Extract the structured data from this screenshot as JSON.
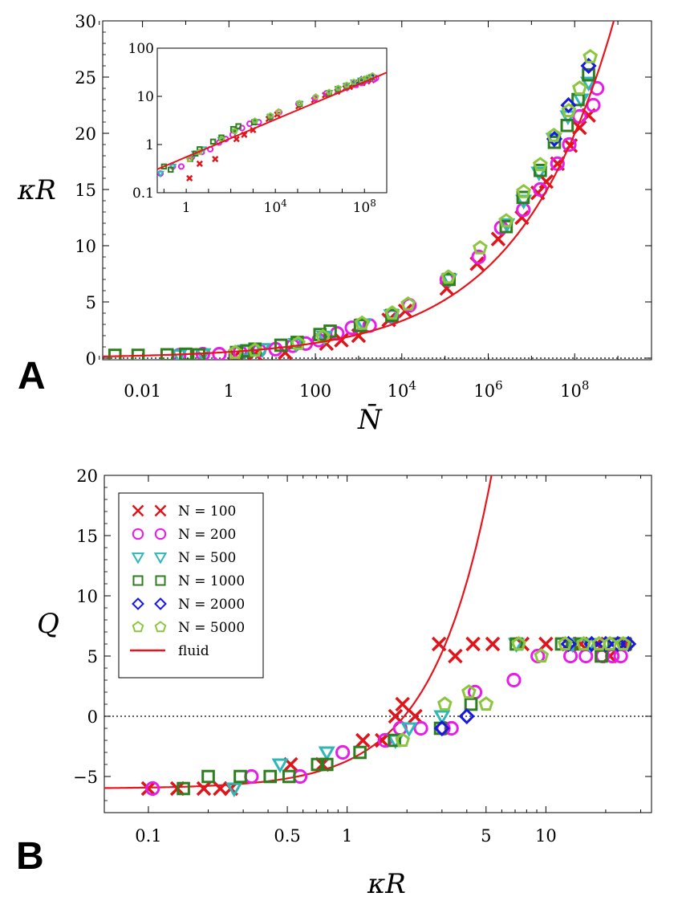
{
  "chart_data": [
    {
      "panel": "A",
      "type": "scatter",
      "xlabel": "N̄",
      "ylabel": "κR",
      "xscale": "log",
      "xlim": [
        0.0012,
        6000000000.0
      ],
      "ylim": [
        0,
        30
      ],
      "x_ticks": [
        {
          "value": 0.01,
          "label": "0.01"
        },
        {
          "value": 1,
          "label": "1"
        },
        {
          "value": 100,
          "label": "100"
        },
        {
          "value": 10000,
          "label": "10",
          "sup": "4"
        },
        {
          "value": 1000000,
          "label": "10",
          "sup": "6"
        },
        {
          "value": 100000000,
          "label": "10",
          "sup": "8"
        }
      ],
      "y_ticks": [
        "0",
        "5",
        "10",
        "15",
        "20",
        "25",
        "30"
      ],
      "grid": false,
      "colors": {
        "N100": "#e0151b",
        "N200": "#e81ce8",
        "N500": "#2eb7b5",
        "N1000": "#2e7d1e",
        "N2000": "#1818e0",
        "N5000": "#8cc63f",
        "fluid": "#e8141c"
      },
      "series": [
        {
          "key": "N100",
          "marker": "x",
          "x": [
            0.25,
            1.4,
            4,
            20,
            180,
            400,
            1000,
            5000,
            12000,
            110000,
            550000,
            1700000,
            6000000,
            14000000,
            22000000,
            40000000,
            80000000,
            130000000,
            210000000
          ],
          "y": [
            0.1,
            0.2,
            0.4,
            0.5,
            1.3,
            1.6,
            2.0,
            3.4,
            4.2,
            6.2,
            8.4,
            10.6,
            12.5,
            14.7,
            15.7,
            17.3,
            18.9,
            20.5,
            21.6
          ]
        },
        {
          "key": "N200",
          "marker": "circle",
          "x": [
            0.07,
            0.25,
            0.6,
            1.8,
            5,
            12,
            30,
            60,
            120,
            320,
            700,
            1800,
            6000,
            15000,
            110000,
            600000,
            2000000,
            6500000,
            16000000,
            40000000,
            75000000,
            130000000,
            270000000,
            330000000
          ],
          "y": [
            0.25,
            0.35,
            0.35,
            0.55,
            0.7,
            0.8,
            1.1,
            1.3,
            1.6,
            2.2,
            2.7,
            2.9,
            3.7,
            4.7,
            7.0,
            9.0,
            11.6,
            13.2,
            15.0,
            17.3,
            19.0,
            21.5,
            22.5,
            24.0
          ]
        },
        {
          "key": "N500",
          "marker": "triangle",
          "x": [
            0.07,
            0.25,
            2.4,
            6,
            36,
            160,
            1300,
            5800,
            125000,
            2700000,
            6600000,
            15000000,
            33000000,
            70000000,
            140000000,
            210000000
          ],
          "y": [
            0.25,
            0.35,
            0.65,
            0.8,
            1.25,
            1.9,
            3.0,
            3.8,
            7.0,
            11.9,
            14.0,
            16.5,
            19.5,
            21.5,
            23.0,
            24.5
          ]
        },
        {
          "key": "N1000",
          "marker": "square",
          "x": [
            0.0023,
            0.0079,
            0.037,
            0.1,
            0.2,
            1.5,
            2.6,
            4,
            16,
            38,
            128,
            220,
            1100,
            5900,
            124000,
            2600000,
            6400000,
            16000000,
            34000000,
            67000000,
            120000000,
            210000000
          ],
          "y": [
            0.25,
            0.25,
            0.3,
            0.35,
            0.3,
            0.5,
            0.65,
            0.8,
            1.15,
            1.4,
            2.1,
            2.4,
            2.9,
            3.8,
            7.0,
            11.7,
            14.3,
            16.7,
            19.2,
            20.7,
            23.0,
            25.2
          ]
        },
        {
          "key": "N2000",
          "marker": "diamond",
          "x": [
            34000000,
            72000000,
            210000000
          ],
          "y": [
            19.5,
            22.5,
            26.0
          ]
        },
        {
          "key": "N5000",
          "marker": "pentagon",
          "x": [
            1.4,
            4,
            40,
            150,
            1200,
            6000,
            14000,
            120000,
            650000,
            2600000,
            6600000,
            16000000,
            33000000,
            73000000,
            130000000,
            230000000
          ],
          "y": [
            0.5,
            0.7,
            1.3,
            1.9,
            3.1,
            4.0,
            4.8,
            7.2,
            9.8,
            12.2,
            14.8,
            17.2,
            19.8,
            22.0,
            24.0,
            26.8
          ]
        }
      ],
      "fluid_curve": {
        "name": "fluid",
        "color": "#e8141c"
      },
      "inset": {
        "xscale": "log",
        "yscale": "log",
        "xlim": [
          0.05,
          1000000000.0
        ],
        "ylim": [
          0.1,
          100
        ],
        "x_ticks": [
          {
            "value": 1,
            "label": "1"
          },
          {
            "value": 10000,
            "label": "10",
            "sup": "4"
          },
          {
            "value": 100000000,
            "label": "10",
            "sup": "8"
          }
        ],
        "y_ticks": [
          {
            "value": 0.1,
            "label": "0.1"
          },
          {
            "value": 1,
            "label": "1"
          },
          {
            "value": 10,
            "label": "10"
          },
          {
            "value": 100,
            "label": "100"
          }
        ]
      }
    },
    {
      "panel": "B",
      "type": "scatter",
      "xlabel": "κR",
      "ylabel": "Q",
      "xscale": "log",
      "xlim": [
        0.06,
        34
      ],
      "ylim": [
        -8,
        20
      ],
      "x_ticks": [
        "0.1",
        "0.5",
        "1",
        "5",
        "10"
      ],
      "x_tick_values": [
        0.1,
        0.5,
        1,
        5,
        10
      ],
      "y_ticks": [
        "−5",
        "0",
        "5",
        "10",
        "15",
        "20"
      ],
      "y_tick_values": [
        -5,
        0,
        5,
        10,
        15,
        20
      ],
      "reference_line_y": 0,
      "legend": {
        "placement": "top-left",
        "entries": [
          {
            "key": "N100",
            "marker": "x",
            "label": "N = 100"
          },
          {
            "key": "N200",
            "marker": "circle",
            "label": "N = 200"
          },
          {
            "key": "N500",
            "marker": "triangle",
            "label": "N = 500"
          },
          {
            "key": "N1000",
            "marker": "square",
            "label": "N = 1000"
          },
          {
            "key": "N2000",
            "marker": "diamond",
            "label": "N = 2000"
          },
          {
            "key": "N5000",
            "marker": "pentagon",
            "label": "N = 5000"
          },
          {
            "key": "fluid",
            "marker": "line",
            "label": "fluid"
          }
        ]
      },
      "series": [
        {
          "key": "N100",
          "marker": "x",
          "x": [
            0.1,
            0.14,
            0.19,
            0.23,
            0.26,
            0.52,
            0.75,
            1.2,
            1.5,
            1.75,
            1.9,
            2.2,
            2.9,
            3.5,
            4.3,
            5.4,
            7.6,
            10,
            13,
            15,
            18,
            21,
            25
          ],
          "y": [
            -6,
            -6,
            -6,
            -6,
            -6,
            -4,
            -4,
            -2,
            -2,
            0,
            1,
            0,
            6,
            5,
            6,
            6,
            6,
            6,
            6,
            6,
            6,
            5,
            6
          ]
        },
        {
          "key": "N200",
          "marker": "circle",
          "x": [
            0.105,
            0.33,
            0.58,
            0.95,
            1.55,
            1.85,
            2.35,
            3.05,
            3.35,
            4.4,
            6.9,
            9.1,
            13.3,
            15.9,
            19.3,
            21.6,
            23.8
          ],
          "y": [
            -6,
            -5,
            -5,
            -3,
            -2,
            -1,
            -1,
            -1,
            -1,
            2,
            3,
            5,
            5,
            5,
            5,
            5,
            5
          ]
        },
        {
          "key": "N500",
          "marker": "triangle",
          "x": [
            0.27,
            0.46,
            0.79,
            1.75,
            2.05,
            3.0,
            7.1,
            13.6,
            16.6
          ],
          "y": [
            -6,
            -4,
            -3,
            -2,
            -1,
            0,
            6,
            6,
            6
          ]
        },
        {
          "key": "N1000",
          "marker": "square",
          "x": [
            0.15,
            0.2,
            0.29,
            0.41,
            0.51,
            0.71,
            0.79,
            1.16,
            1.73,
            2.95,
            4.2,
            7.1,
            12,
            15,
            19,
            22,
            25
          ],
          "y": [
            -6,
            -5,
            -5,
            -5,
            -5,
            -4,
            -4,
            -3,
            -2,
            -1,
            1,
            6,
            6,
            6,
            5,
            6,
            6
          ]
        },
        {
          "key": "N2000",
          "marker": "diamond",
          "x": [
            3.0,
            4.0,
            13,
            17,
            20,
            23,
            26
          ],
          "y": [
            -1,
            0,
            6,
            6,
            6,
            6,
            6
          ]
        },
        {
          "key": "N5000",
          "marker": "pentagon",
          "x": [
            1.9,
            3.1,
            4.1,
            5.0,
            7.3,
            9.5,
            12.5,
            15.5,
            18.5,
            21,
            24.5
          ],
          "y": [
            -2,
            1,
            2,
            1,
            6,
            5,
            6,
            6,
            6,
            6,
            6
          ]
        }
      ],
      "fluid_curve": {
        "name": "fluid",
        "color": "#e8141c"
      }
    }
  ],
  "figure": {
    "panel_a_letter": "A",
    "panel_b_letter": "B"
  }
}
